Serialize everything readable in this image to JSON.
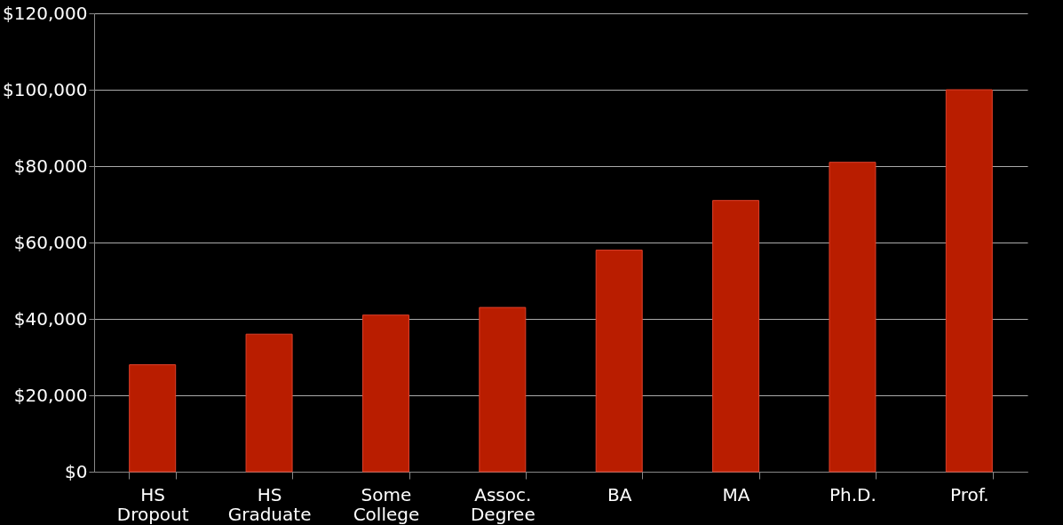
{
  "chart_data": {
    "type": "bar",
    "categories": [
      "HS Dropout",
      "HS Graduate",
      "Some College",
      "Assoc. Degree",
      "BA",
      "MA",
      "Ph.D.",
      "Prof."
    ],
    "values": [
      28000,
      36000,
      41000,
      43000,
      58000,
      71000,
      81000,
      100000
    ],
    "color": "#b91d00",
    "ylim": [
      0,
      120000
    ],
    "yticks": [
      {
        "value": 0,
        "label": "$0"
      },
      {
        "value": 20000,
        "label": "$20,000"
      },
      {
        "value": 40000,
        "label": "$40,000"
      },
      {
        "value": 60000,
        "label": "$60,000"
      },
      {
        "value": 80000,
        "label": "$80,000"
      },
      {
        "value": 100000,
        "label": "$100,000"
      },
      {
        "value": 120000,
        "label": "$120,000"
      }
    ],
    "grid": "y"
  }
}
